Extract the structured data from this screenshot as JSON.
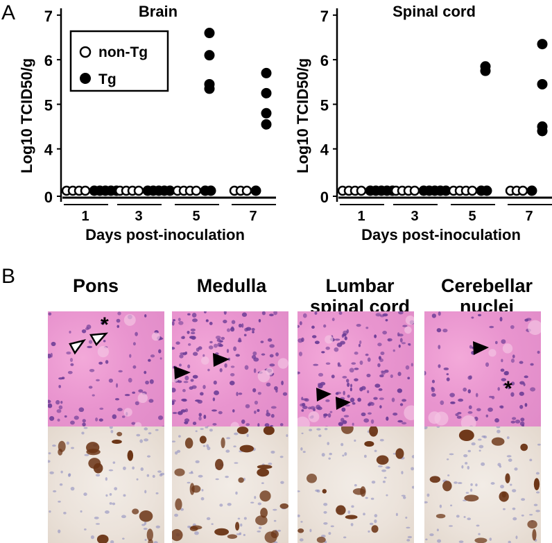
{
  "panel_a_label": "A",
  "panel_b_label": "B",
  "chart_data": [
    {
      "type": "scatter",
      "title": "Brain",
      "xlabel": "Days post-inoculation",
      "ylabel": "Log10 TCID50/g",
      "ylim": [
        0,
        7
      ],
      "yticks": [
        "0",
        "4",
        "5",
        "6",
        "7"
      ],
      "categories": [
        "1",
        "3",
        "5",
        "7"
      ],
      "legend": {
        "placement": "top-left",
        "entries": [
          "non-Tg",
          "Tg"
        ]
      },
      "series": [
        {
          "name": "non-Tg",
          "marker": "open-circle",
          "points_by_category": {
            "1": [
              0,
              0,
              0,
              0
            ],
            "3": [
              0,
              0,
              0,
              0
            ],
            "5": [
              0,
              0,
              0,
              0
            ],
            "7": [
              0,
              0,
              0
            ]
          }
        },
        {
          "name": "Tg",
          "marker": "filled-circle",
          "points_by_category": {
            "1": [
              0,
              0,
              0,
              0,
              0
            ],
            "3": [
              0,
              0,
              0,
              0,
              0
            ],
            "5": [
              6.6,
              6.1,
              5.45,
              5.35,
              0,
              0
            ],
            "7": [
              5.7,
              5.25,
              4.8,
              4.55,
              0
            ]
          }
        }
      ]
    },
    {
      "type": "scatter",
      "title": "Spinal cord",
      "xlabel": "Days post-inoculation",
      "ylabel": "Log10 TCID50/g",
      "ylim": [
        0,
        7
      ],
      "yticks": [
        "0",
        "4",
        "5",
        "6",
        "7"
      ],
      "categories": [
        "1",
        "3",
        "5",
        "7"
      ],
      "series": [
        {
          "name": "non-Tg",
          "marker": "open-circle",
          "points_by_category": {
            "1": [
              0,
              0,
              0,
              0
            ],
            "3": [
              0,
              0,
              0,
              0
            ],
            "5": [
              0,
              0,
              0,
              0
            ],
            "7": [
              0,
              0,
              0
            ]
          }
        },
        {
          "name": "Tg",
          "marker": "filled-circle",
          "points_by_category": {
            "1": [
              0,
              0,
              0,
              0,
              0
            ],
            "3": [
              0,
              0,
              0,
              0,
              0
            ],
            "5": [
              5.85,
              5.75,
              0,
              0
            ],
            "7": [
              6.35,
              5.45,
              4.5,
              4.4,
              0
            ]
          }
        }
      ]
    }
  ],
  "panel_b": {
    "regions": [
      {
        "title_line1": "Pons",
        "title_line2": ""
      },
      {
        "title_line1": "Medulla",
        "title_line2": ""
      },
      {
        "title_line1": "Lumbar",
        "title_line2": "spinal cord"
      },
      {
        "title_line1": "Cerebellar",
        "title_line2": "nuclei"
      }
    ],
    "stain_colors": {
      "he_nuclei": "#6a3b95",
      "ihc_stain": "#6b3415",
      "he_background": "#e995cf",
      "ihc_background": "#ece3da"
    }
  }
}
